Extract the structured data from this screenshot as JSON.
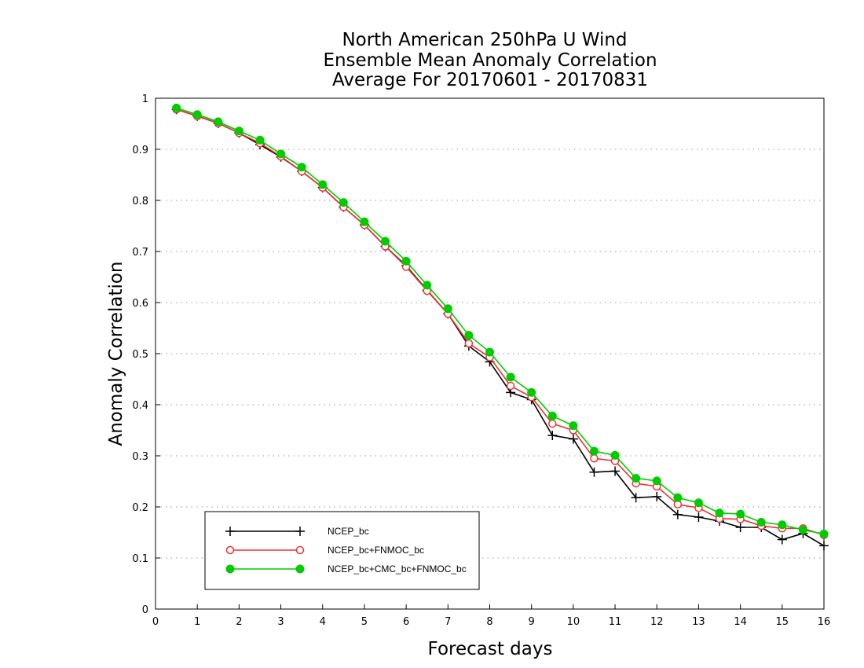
{
  "chart_data": {
    "type": "line",
    "title_lines": [
      "North American 250hPa U Wind",
      "Ensemble Mean Anomaly Correlation",
      "Average For 20170601 - 20170831"
    ],
    "xlabel": "Forecast days",
    "ylabel": "Anomaly Correlation",
    "xlim": [
      0,
      16
    ],
    "ylim": [
      0,
      1
    ],
    "xticks": [
      "0",
      "1",
      "2",
      "3",
      "4",
      "5",
      "6",
      "7",
      "8",
      "9",
      "10",
      "11",
      "12",
      "13",
      "14",
      "15",
      "16"
    ],
    "yticks": [
      "0",
      "0.1",
      "0.2",
      "0.3",
      "0.4",
      "0.5",
      "0.6",
      "0.7",
      "0.8",
      "0.9",
      "1"
    ],
    "grid": "horizontal dotted",
    "legend_position": "bottom-left",
    "x": [
      0.5,
      1,
      1.5,
      2,
      2.5,
      3,
      3.5,
      4,
      4.5,
      5,
      5.5,
      6,
      6.5,
      7,
      7.5,
      8,
      8.5,
      9,
      9.5,
      10,
      10.5,
      11,
      11.5,
      12,
      12.5,
      13,
      13.5,
      14,
      14.5,
      15,
      15.5,
      16
    ],
    "series": [
      {
        "name": "NCEP_bc",
        "color": "#000000",
        "marker": "plus",
        "values": [
          0.978,
          0.965,
          0.951,
          0.932,
          0.909,
          0.885,
          0.857,
          0.825,
          0.787,
          0.752,
          0.71,
          0.672,
          0.624,
          0.578,
          0.515,
          0.484,
          0.424,
          0.41,
          0.34,
          0.333,
          0.268,
          0.27,
          0.218,
          0.22,
          0.185,
          0.18,
          0.172,
          0.16,
          0.16,
          0.136,
          0.148,
          0.124
        ]
      },
      {
        "name": "NCEP_bc+FNMOC_bc",
        "color": "#ee3333",
        "marker": "open-circle",
        "values": [
          0.978,
          0.965,
          0.951,
          0.932,
          0.912,
          0.886,
          0.857,
          0.825,
          0.787,
          0.752,
          0.71,
          0.67,
          0.623,
          0.578,
          0.52,
          0.493,
          0.437,
          0.415,
          0.363,
          0.35,
          0.295,
          0.29,
          0.246,
          0.24,
          0.205,
          0.198,
          0.177,
          0.176,
          0.163,
          0.158,
          0.158,
          0.145
        ]
      },
      {
        "name": "NCEP_bc+CMC_bc+FNMOC_bc",
        "color": "#00cc00",
        "marker": "filled-circle",
        "values": [
          0.981,
          0.968,
          0.954,
          0.936,
          0.918,
          0.891,
          0.865,
          0.831,
          0.796,
          0.758,
          0.72,
          0.681,
          0.634,
          0.588,
          0.536,
          0.503,
          0.454,
          0.424,
          0.378,
          0.359,
          0.309,
          0.301,
          0.256,
          0.251,
          0.218,
          0.208,
          0.188,
          0.186,
          0.17,
          0.165,
          0.155,
          0.147
        ]
      }
    ]
  }
}
